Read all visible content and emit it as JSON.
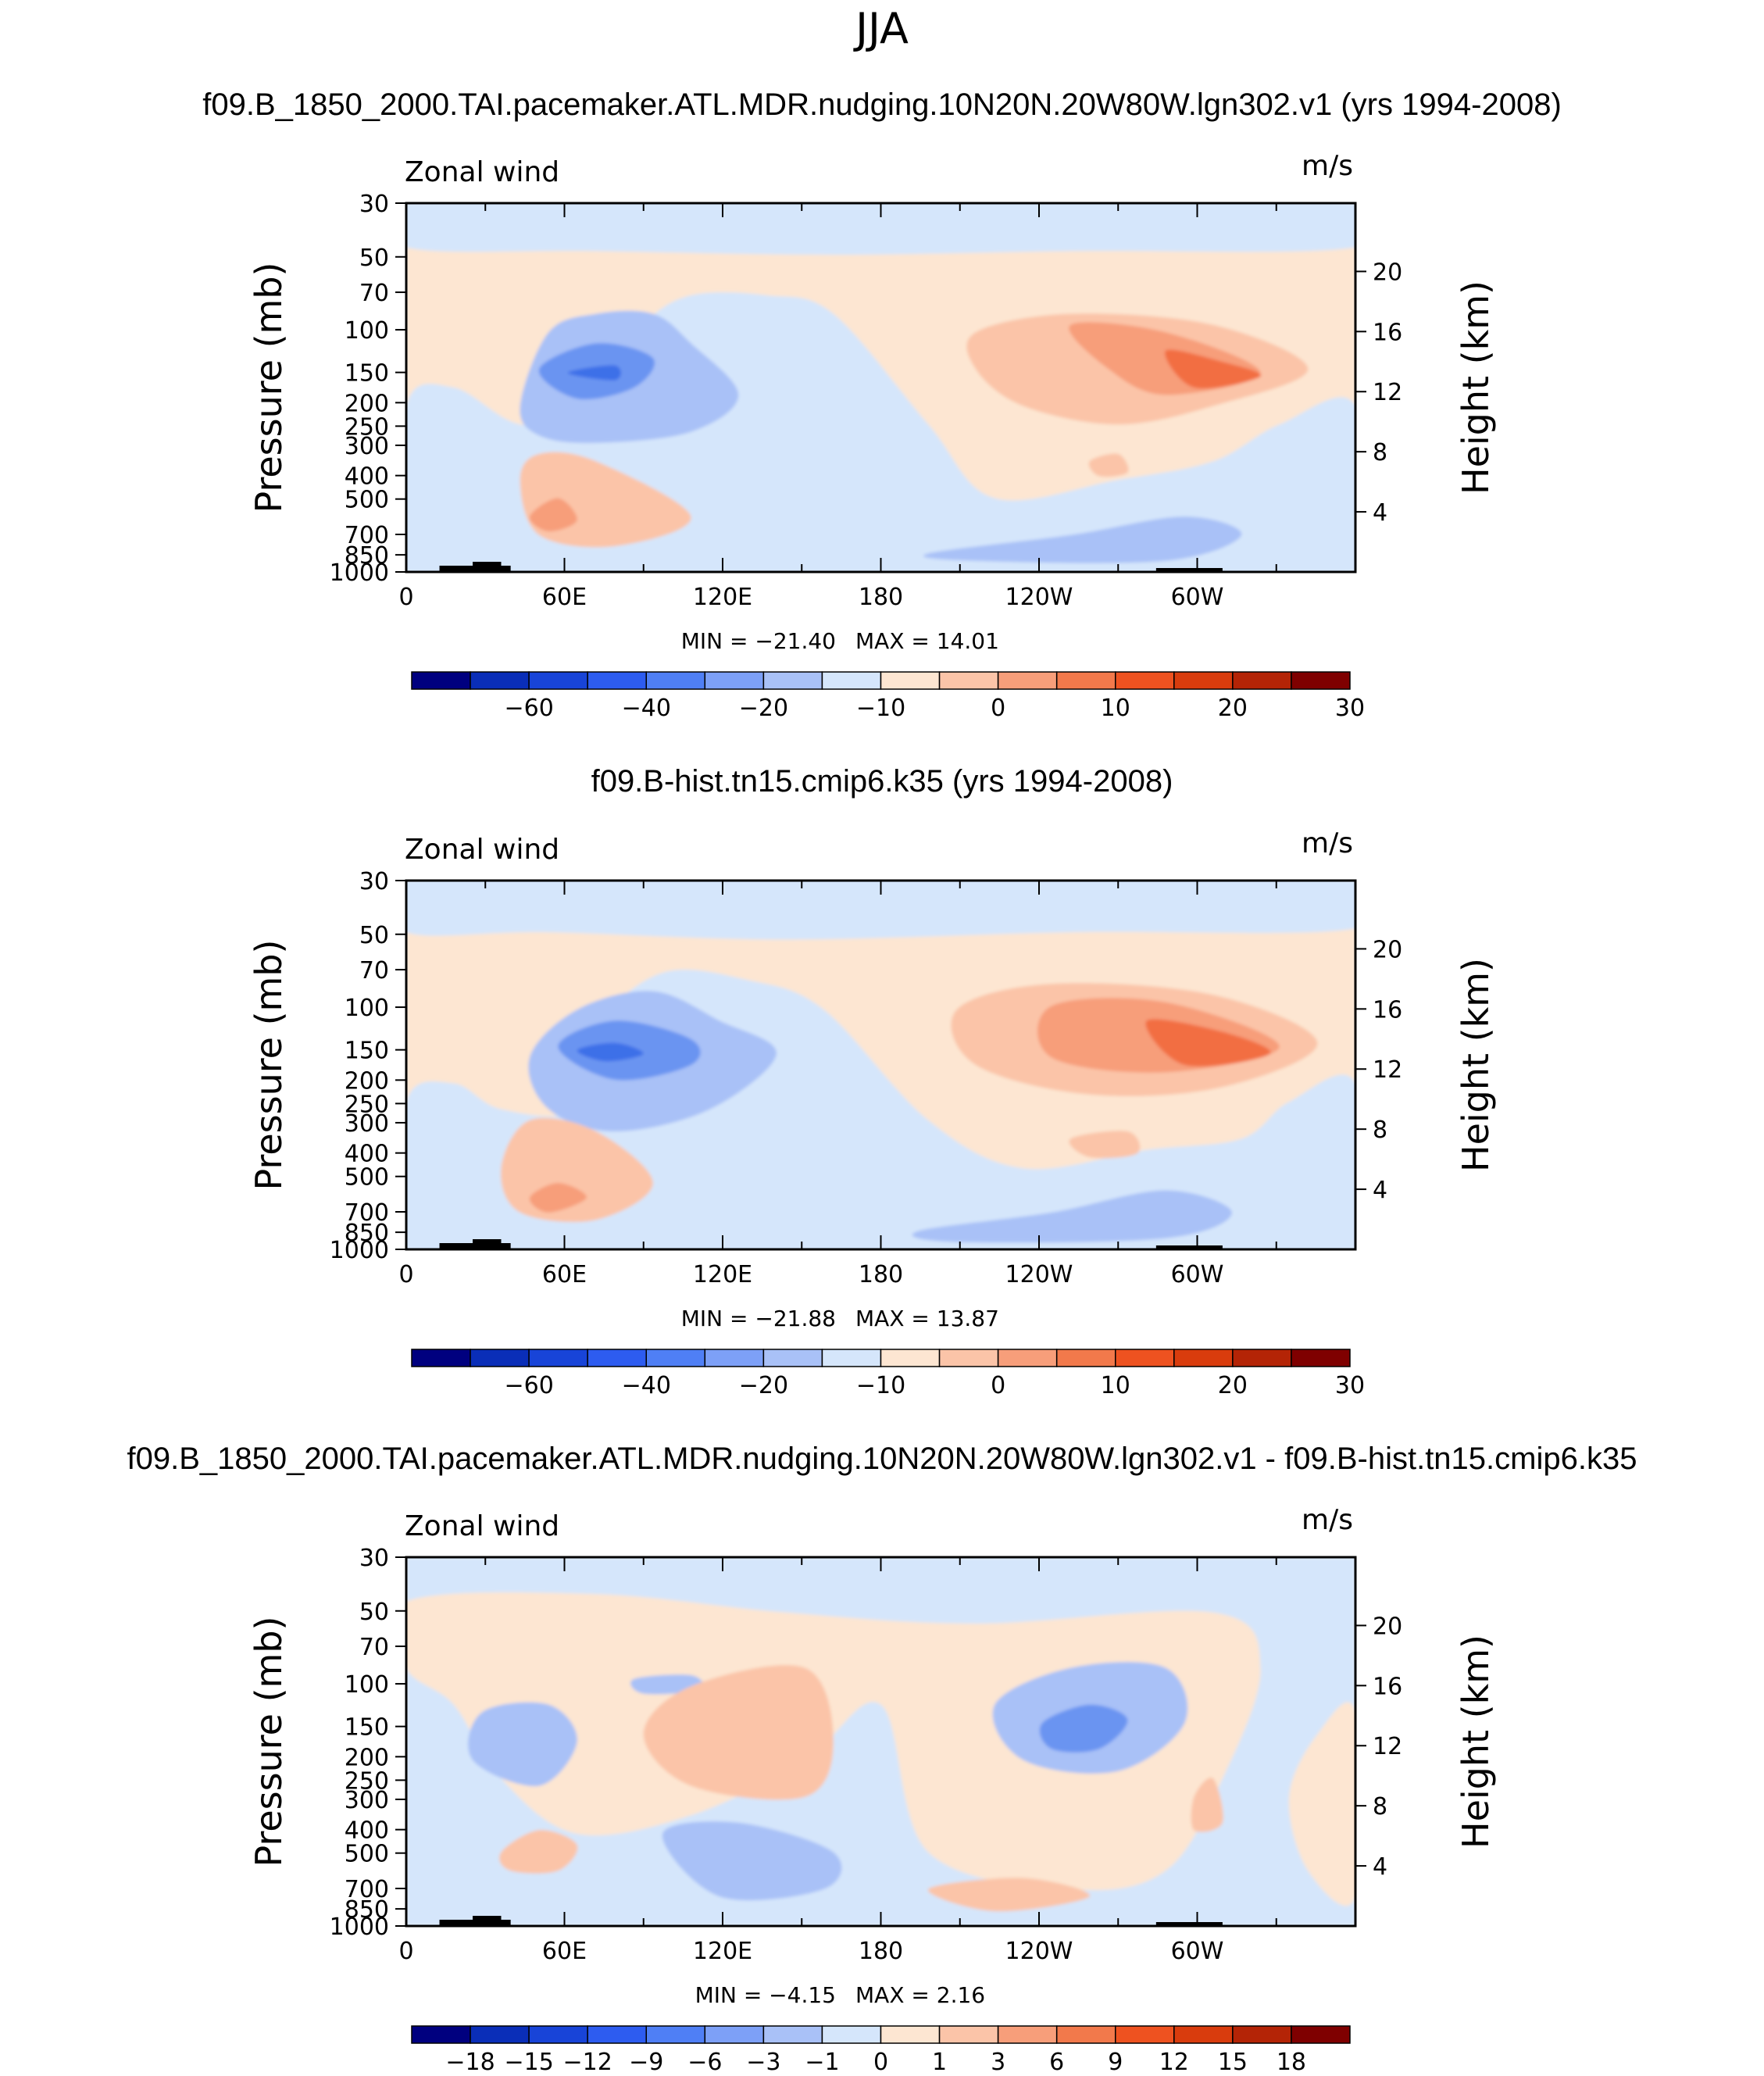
{
  "figure": {
    "season": "JJA",
    "colors": {
      "dneg4": "#3c6fe8",
      "dneg3": "#6b94f1",
      "dneg2": "#a9c1f7",
      "dneg1": "#d5e6fb",
      "dpos1": "#fde6d2",
      "dpos2": "#fbc4a8",
      "dpos3": "#f79e7a",
      "dpos4": "#f26e43",
      "topo": "#000000"
    }
  },
  "chart_data": [
    {
      "type": "contour",
      "title": "f09.B_1850_2000.TAI.pacemaker.ATL.MDR.nudging.10N20N.20W80W.lgn302.v1 (yrs 1994-2008)",
      "variable": "Zonal wind",
      "units": "m/s",
      "xlabel": "",
      "ylabel": "Pressure (mb)",
      "y2label": "Height (km)",
      "xticks": [
        "0",
        "60E",
        "120E",
        "180",
        "120W",
        "60W"
      ],
      "yticks": [
        "30",
        "50",
        "70",
        "100",
        "150",
        "200",
        "250",
        "300",
        "400",
        "500",
        "700",
        "850",
        "1000"
      ],
      "y2ticks": [
        "20",
        "16",
        "12",
        "8",
        "4"
      ],
      "min_label": "MIN = −21.40",
      "max_label": "MAX = 14.01",
      "min": -21.4,
      "max": 14.01,
      "colorbar_levels": [
        "−60",
        "−40",
        "−20",
        "−10",
        "0",
        "10",
        "20",
        "30"
      ],
      "colorbar_colors": [
        "#00007f",
        "#0a2eb8",
        "#1844d8",
        "#2d5cf0",
        "#4f7ff5",
        "#7da0f7",
        "#a9c1f7",
        "#d5e6fb",
        "#fde6d2",
        "#fbc4a8",
        "#f79e7a",
        "#f2794b",
        "#ee5220",
        "#d93c0d",
        "#b42406",
        "#7f0000"
      ]
    },
    {
      "type": "contour",
      "title": "f09.B-hist.tn15.cmip6.k35 (yrs 1994-2008)",
      "variable": "Zonal wind",
      "units": "m/s",
      "xlabel": "",
      "ylabel": "Pressure (mb)",
      "y2label": "Height (km)",
      "xticks": [
        "0",
        "60E",
        "120E",
        "180",
        "120W",
        "60W"
      ],
      "yticks": [
        "30",
        "50",
        "70",
        "100",
        "150",
        "200",
        "250",
        "300",
        "400",
        "500",
        "700",
        "850",
        "1000"
      ],
      "y2ticks": [
        "20",
        "16",
        "12",
        "8",
        "4"
      ],
      "min_label": "MIN = −21.88",
      "max_label": "MAX = 13.87",
      "min": -21.88,
      "max": 13.87,
      "colorbar_levels": [
        "−60",
        "−40",
        "−20",
        "−10",
        "0",
        "10",
        "20",
        "30"
      ],
      "colorbar_colors": [
        "#00007f",
        "#0a2eb8",
        "#1844d8",
        "#2d5cf0",
        "#4f7ff5",
        "#7da0f7",
        "#a9c1f7",
        "#d5e6fb",
        "#fde6d2",
        "#fbc4a8",
        "#f79e7a",
        "#f2794b",
        "#ee5220",
        "#d93c0d",
        "#b42406",
        "#7f0000"
      ]
    },
    {
      "type": "contour",
      "title": "f09.B_1850_2000.TAI.pacemaker.ATL.MDR.nudging.10N20N.20W80W.lgn302.v1 - f09.B-hist.tn15.cmip6.k35",
      "variable": "Zonal wind",
      "units": "m/s",
      "xlabel": "",
      "ylabel": "Pressure (mb)",
      "y2label": "Height (km)",
      "xticks": [
        "0",
        "60E",
        "120E",
        "180",
        "120W",
        "60W"
      ],
      "yticks": [
        "30",
        "50",
        "70",
        "100",
        "150",
        "200",
        "250",
        "300",
        "400",
        "500",
        "700",
        "850",
        "1000"
      ],
      "y2ticks": [
        "20",
        "16",
        "12",
        "8",
        "4"
      ],
      "min_label": "MIN = −4.15",
      "max_label": "MAX = 2.16",
      "min": -4.15,
      "max": 2.16,
      "colorbar_levels": [
        "−18",
        "−15",
        "−12",
        "−9",
        "−6",
        "−3",
        "−1",
        "0",
        "1",
        "3",
        "6",
        "9",
        "12",
        "15",
        "18"
      ],
      "colorbar_colors": [
        "#00007f",
        "#0a2eb8",
        "#1844d8",
        "#2d5cf0",
        "#4f7ff5",
        "#7da0f7",
        "#a9c1f7",
        "#d5e6fb",
        "#fde6d2",
        "#fbc4a8",
        "#f79e7a",
        "#f2794b",
        "#ee5220",
        "#d93c0d",
        "#b42406",
        "#7f0000"
      ]
    }
  ]
}
